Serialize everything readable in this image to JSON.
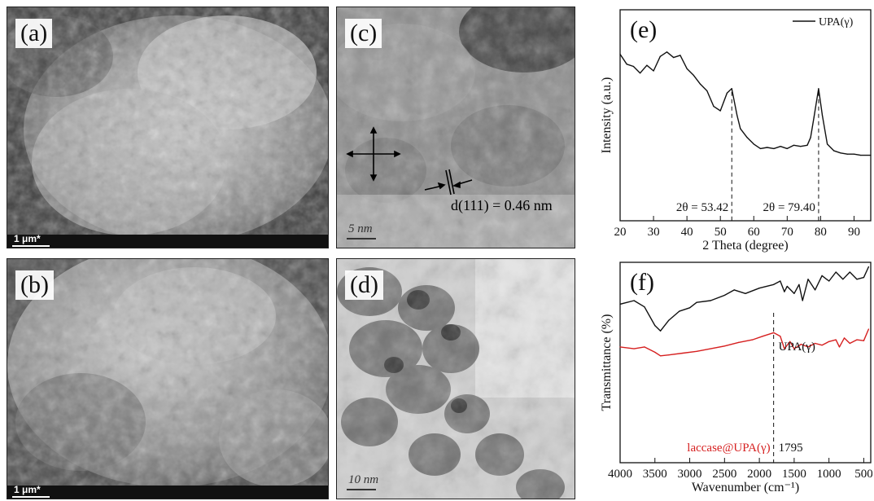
{
  "panels": {
    "a": {
      "label": "(a)",
      "scale_bar": "1 μm*"
    },
    "b": {
      "label": "(b)",
      "scale_bar": "1 μm*"
    },
    "c": {
      "label": "(c)",
      "scale_bar": "5 nm",
      "annotation": "d(111) = 0.46 nm"
    },
    "d": {
      "label": "(d)",
      "scale_bar": "10 nm"
    }
  },
  "chart_data": [
    {
      "type": "line",
      "panel_label": "(e)",
      "xlabel": "2 Theta (degree)",
      "ylabel": "Intensity (a.u.)",
      "xlim": [
        20,
        95
      ],
      "x_ticks": [
        "20",
        "30",
        "40",
        "50",
        "60",
        "70",
        "80",
        "90"
      ],
      "legend": "UPA(γ)",
      "legend_position": "top-right",
      "annotations": [
        "2θ = 53.42",
        "2θ = 79.40"
      ],
      "peak_markers": [
        53.42,
        79.4
      ],
      "series": [
        {
          "name": "UPA(γ)",
          "color": "#111111",
          "x": [
            20,
            22,
            24,
            26,
            28,
            30,
            32,
            34,
            36,
            38,
            40,
            42,
            44,
            46,
            48,
            50,
            51,
            52,
            53.42,
            55,
            56,
            58,
            60,
            62,
            64,
            66,
            68,
            70,
            72,
            74,
            76,
            77,
            78,
            79.4,
            80.5,
            82,
            84,
            86,
            88,
            90,
            92,
            95
          ],
          "y": [
            0.95,
            0.86,
            0.84,
            0.78,
            0.85,
            0.8,
            0.93,
            0.97,
            0.92,
            0.94,
            0.82,
            0.76,
            0.68,
            0.62,
            0.48,
            0.44,
            0.52,
            0.6,
            0.64,
            0.4,
            0.28,
            0.2,
            0.14,
            0.1,
            0.11,
            0.1,
            0.12,
            0.1,
            0.13,
            0.12,
            0.13,
            0.2,
            0.38,
            0.64,
            0.4,
            0.14,
            0.08,
            0.06,
            0.05,
            0.05,
            0.04,
            0.04
          ]
        }
      ]
    },
    {
      "type": "line",
      "panel_label": "(f)",
      "xlabel": "Wavenumber (cm⁻¹)",
      "ylabel": "Transmittance (%)",
      "xlim": [
        4000,
        400
      ],
      "x_ticks": [
        "4000",
        "3500",
        "3000",
        "2500",
        "2000",
        "1500",
        "1000",
        "500"
      ],
      "marker_x": 1795,
      "marker_label": "1795",
      "series": [
        {
          "name": "UPA(γ)",
          "color": "#111111",
          "x": [
            4000,
            3800,
            3650,
            3500,
            3420,
            3300,
            3150,
            3000,
            2900,
            2700,
            2500,
            2360,
            2200,
            2000,
            1795,
            1700,
            1640,
            1600,
            1500,
            1430,
            1380,
            1300,
            1200,
            1100,
            1000,
            900,
            800,
            700,
            600,
            500,
            430
          ],
          "y": [
            0.58,
            0.62,
            0.55,
            0.34,
            0.28,
            0.4,
            0.5,
            0.54,
            0.6,
            0.62,
            0.68,
            0.74,
            0.7,
            0.76,
            0.8,
            0.84,
            0.72,
            0.78,
            0.7,
            0.8,
            0.62,
            0.86,
            0.74,
            0.9,
            0.84,
            0.94,
            0.86,
            0.94,
            0.86,
            0.88,
            1.0
          ]
        },
        {
          "name": "laccase@UPA(γ)",
          "color": "#d62020",
          "x": [
            4000,
            3800,
            3650,
            3500,
            3420,
            3300,
            3100,
            2900,
            2700,
            2500,
            2300,
            2100,
            1950,
            1795,
            1700,
            1640,
            1560,
            1500,
            1400,
            1300,
            1200,
            1100,
            1000,
            900,
            850,
            780,
            700,
            600,
            500,
            430
          ],
          "y": [
            0.1,
            0.08,
            0.1,
            0.04,
            0.0,
            0.01,
            0.03,
            0.05,
            0.08,
            0.11,
            0.15,
            0.18,
            0.22,
            0.26,
            0.22,
            0.08,
            0.16,
            0.08,
            0.13,
            0.1,
            0.14,
            0.12,
            0.16,
            0.18,
            0.1,
            0.2,
            0.14,
            0.18,
            0.17,
            0.3
          ]
        }
      ]
    }
  ]
}
